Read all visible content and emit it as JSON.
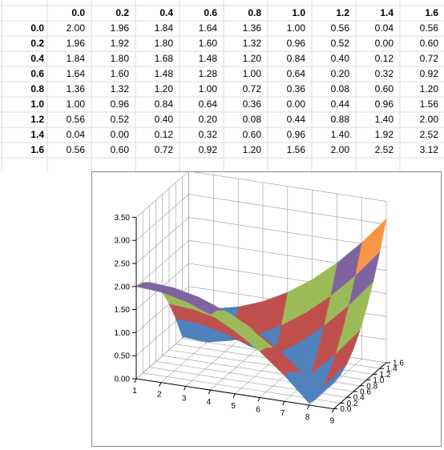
{
  "chart_data": [
    {
      "type": "table",
      "column_headers": [
        "0.0",
        "0.2",
        "0.4",
        "0.6",
        "0.8",
        "1.0",
        "1.2",
        "1.4",
        "1.6"
      ],
      "row_headers": [
        "0.0",
        "0.2",
        "0.4",
        "0.6",
        "0.8",
        "1.0",
        "1.2",
        "1.4",
        "1.6"
      ],
      "rows": [
        [
          "2.00",
          "1.96",
          "1.84",
          "1.64",
          "1.36",
          "1.00",
          "0.56",
          "0.04",
          "0.56"
        ],
        [
          "1.96",
          "1.92",
          "1.80",
          "1.60",
          "1.32",
          "0.96",
          "0.52",
          "0.00",
          "0.60"
        ],
        [
          "1.84",
          "1.80",
          "1.68",
          "1.48",
          "1.20",
          "0.84",
          "0.40",
          "0.12",
          "0.72"
        ],
        [
          "1.64",
          "1.60",
          "1.48",
          "1.28",
          "1.00",
          "0.64",
          "0.20",
          "0.32",
          "0.92"
        ],
        [
          "1.36",
          "1.32",
          "1.20",
          "1.00",
          "0.72",
          "0.36",
          "0.08",
          "0.60",
          "1.20"
        ],
        [
          "1.00",
          "0.96",
          "0.84",
          "0.64",
          "0.36",
          "0.00",
          "0.44",
          "0.96",
          "1.56"
        ],
        [
          "0.56",
          "0.52",
          "0.40",
          "0.20",
          "0.08",
          "0.44",
          "0.88",
          "1.40",
          "2.00"
        ],
        [
          "0.04",
          "0.00",
          "0.12",
          "0.32",
          "0.60",
          "0.96",
          "1.40",
          "1.92",
          "2.52"
        ],
        [
          "0.56",
          "0.60",
          "0.72",
          "0.92",
          "1.20",
          "1.56",
          "2.00",
          "2.52",
          "3.12"
        ]
      ]
    },
    {
      "type": "surface",
      "title": "",
      "x_ticks": [
        "1",
        "2",
        "3",
        "4",
        "5",
        "6",
        "7",
        "8",
        "9"
      ],
      "y_ticks": [
        "0.0",
        "0.2",
        "0.4",
        "0.6",
        "0.8",
        "1.0",
        "1.2",
        "1.4",
        "1.6"
      ],
      "z_ticks": [
        "0.00",
        "0.50",
        "1.00",
        "1.50",
        "2.00",
        "2.50",
        "3.00",
        "3.50"
      ],
      "zlim": [
        0,
        3.5
      ],
      "grid": true,
      "band_colors": [
        "#4f81bd",
        "#c0504d",
        "#9bbb59",
        "#8064a2",
        "#4bacc6",
        "#f79646",
        "#2c4d75",
        "#772c2a"
      ]
    }
  ]
}
